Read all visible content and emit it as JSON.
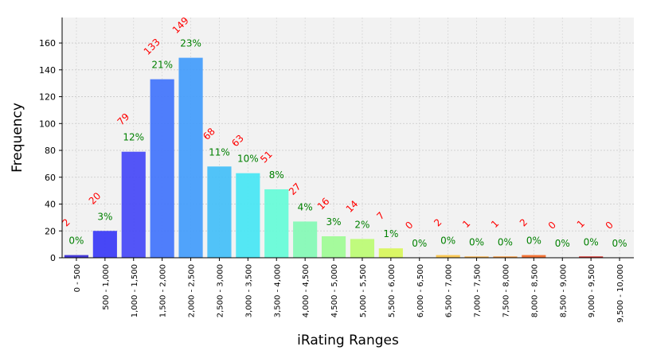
{
  "chart_data": {
    "type": "bar",
    "xlabel": "iRating Ranges",
    "ylabel": "Frequency",
    "ylim": [
      0,
      179
    ],
    "yticks": [
      0,
      20,
      40,
      60,
      80,
      100,
      120,
      140,
      160
    ],
    "grid": true,
    "categories": [
      "0 - 500",
      "500 - 1,000",
      "1,000 - 1,500",
      "1,500 - 2,000",
      "2,000 - 2,500",
      "2,500 - 3,000",
      "3,000 - 3,500",
      "3,500 - 4,000",
      "4,000 - 4,500",
      "4,500 - 5,000",
      "5,000 - 5,500",
      "5,500 - 6,000",
      "6,000 - 6,500",
      "6,500 - 7,000",
      "7,000 - 7,500",
      "7,500 - 8,000",
      "8,000 - 8,500",
      "8,500 - 9,000",
      "9,000 - 9,500",
      "9,500 - 10,000"
    ],
    "values": [
      2,
      20,
      79,
      133,
      149,
      68,
      63,
      51,
      27,
      16,
      14,
      7,
      0,
      2,
      1,
      1,
      2,
      0,
      1,
      0
    ],
    "percent_labels": [
      "0%",
      "3%",
      "12%",
      "21%",
      "23%",
      "11%",
      "10%",
      "8%",
      "4%",
      "3%",
      "2%",
      "1%",
      "0%",
      "0%",
      "0%",
      "0%",
      "0%",
      "0%",
      "0%",
      "0%"
    ],
    "bar_colors": [
      "#3b2fd6",
      "#3d3df5",
      "#4a4cf7",
      "#4677fb",
      "#479efb",
      "#48c0f8",
      "#4be6f3",
      "#68fbd8",
      "#86f9b6",
      "#a0fb97",
      "#bdfb76",
      "#d8f65d",
      "#eedd58",
      "#fbc74e",
      "#fbb040",
      "#f99433",
      "#f26d2c",
      "#e8492a",
      "#d12420",
      "#b51010"
    ],
    "count_label_color": "#ff0000",
    "percent_label_color": "#008000",
    "plot_background": "#f2f2f2"
  }
}
